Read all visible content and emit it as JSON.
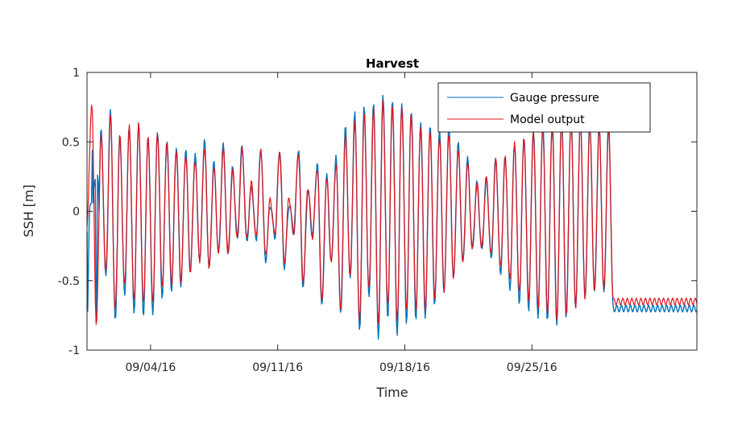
{
  "chart_data": {
    "type": "line",
    "title": "Harvest",
    "xlabel": "Time",
    "ylabel": "SSH [m]",
    "ylim": [
      -1,
      1
    ],
    "xlim": [
      "2016-08-31T12:00",
      "2016-10-04T02:00"
    ],
    "x_ticks": [
      {
        "date": "2016-09-04",
        "label": "09/04/16"
      },
      {
        "date": "2016-09-11",
        "label": "09/11/16"
      },
      {
        "date": "2016-09-18",
        "label": "09/18/16"
      },
      {
        "date": "2016-09-25",
        "label": "09/25/16"
      }
    ],
    "y_ticks": [
      {
        "value": 1,
        "label": "1"
      },
      {
        "value": 0.5,
        "label": "0.5"
      },
      {
        "value": 0,
        "label": "0"
      },
      {
        "value": -0.5,
        "label": "-0.5"
      },
      {
        "value": -1,
        "label": "-1"
      }
    ],
    "grid": false,
    "legend_position": "top-right",
    "sampling": "hourly, tidal oscillation (~12.42 h period); extrema approximated per tidal cycle",
    "series": [
      {
        "name": "Gauge pressure",
        "color": "#0072BD",
        "start": "2016-08-31T12:00",
        "half_cycle_hours": 6.21,
        "extrema": [
          -0.15,
          0.82,
          -0.9,
          0.58,
          -0.48,
          0.72,
          -0.79,
          0.55,
          -0.6,
          0.62,
          -0.72,
          0.65,
          -0.74,
          0.55,
          -0.72,
          0.59,
          -0.61,
          0.52,
          -0.57,
          0.46,
          -0.54,
          0.44,
          -0.45,
          0.4,
          -0.37,
          0.5,
          -0.42,
          0.34,
          -0.31,
          0.47,
          -0.32,
          0.31,
          -0.2,
          0.47,
          -0.21,
          0.18,
          -0.2,
          0.45,
          -0.35,
          0.05,
          -0.18,
          0.45,
          -0.4,
          0.05,
          -0.15,
          0.45,
          -0.55,
          0.15,
          -0.18,
          0.34,
          -0.69,
          0.25,
          -0.38,
          0.38,
          -0.76,
          0.6,
          -0.5,
          0.7,
          -0.87,
          0.75,
          -0.62,
          0.78,
          -0.91,
          0.85,
          -0.76,
          0.82,
          -0.87,
          0.8,
          -0.79,
          0.74,
          -0.77,
          0.65,
          -0.76,
          0.62,
          -0.68,
          0.58,
          -0.6,
          0.6,
          -0.5,
          0.48,
          -0.38,
          0.37,
          -0.28,
          0.2,
          -0.28,
          0.24,
          -0.34,
          0.38,
          -0.45,
          0.4,
          -0.55,
          0.5,
          -0.65,
          0.55,
          -0.7,
          0.6,
          -0.75,
          0.65,
          -0.78,
          0.65,
          -0.82,
          0.68,
          -0.78,
          0.7,
          -0.72,
          0.68,
          -0.65,
          0.65,
          -0.6,
          0.62,
          -0.6,
          0.62,
          -0.7
        ],
        "y_first": [
          -0.15,
          -0.72,
          -0.36,
          -0.04,
          0.05,
          0.05,
          0.07,
          0.44,
          0.06,
          0.17,
          0.2,
          0.23,
          -0.75,
          -0.72,
          0.26,
          0.21
        ]
      },
      {
        "name": "Model output",
        "color": "#E3141B",
        "start": "2016-08-31T12:00",
        "half_cycle_hours": 6.21,
        "extrema": [
          -0.1,
          0.78,
          -0.82,
          0.55,
          -0.44,
          0.68,
          -0.72,
          0.53,
          -0.55,
          0.6,
          -0.66,
          0.62,
          -0.68,
          0.53,
          -0.66,
          0.56,
          -0.55,
          0.5,
          -0.52,
          0.45,
          -0.5,
          0.42,
          -0.42,
          0.38,
          -0.35,
          0.47,
          -0.4,
          0.32,
          -0.3,
          0.45,
          -0.31,
          0.29,
          -0.2,
          0.44,
          -0.21,
          0.2,
          -0.2,
          0.43,
          -0.33,
          0.08,
          -0.18,
          0.42,
          -0.37,
          0.1,
          -0.16,
          0.42,
          -0.5,
          0.18,
          -0.18,
          0.32,
          -0.63,
          0.25,
          -0.35,
          0.35,
          -0.7,
          0.55,
          -0.47,
          0.64,
          -0.8,
          0.7,
          -0.58,
          0.72,
          -0.83,
          0.78,
          -0.7,
          0.75,
          -0.8,
          0.74,
          -0.72,
          0.7,
          -0.7,
          0.62,
          -0.7,
          0.6,
          -0.62,
          0.55,
          -0.56,
          0.57,
          -0.47,
          0.45,
          -0.36,
          0.35,
          -0.27,
          0.2,
          -0.27,
          0.23,
          -0.32,
          0.36,
          -0.42,
          0.38,
          -0.51,
          0.48,
          -0.6,
          0.52,
          -0.65,
          0.58,
          -0.7,
          0.62,
          -0.73,
          0.63,
          -0.76,
          0.65,
          -0.73,
          0.67,
          -0.68,
          0.65,
          -0.62,
          0.63,
          -0.58,
          0.6,
          -0.57,
          0.6,
          -0.65
        ]
      }
    ]
  }
}
